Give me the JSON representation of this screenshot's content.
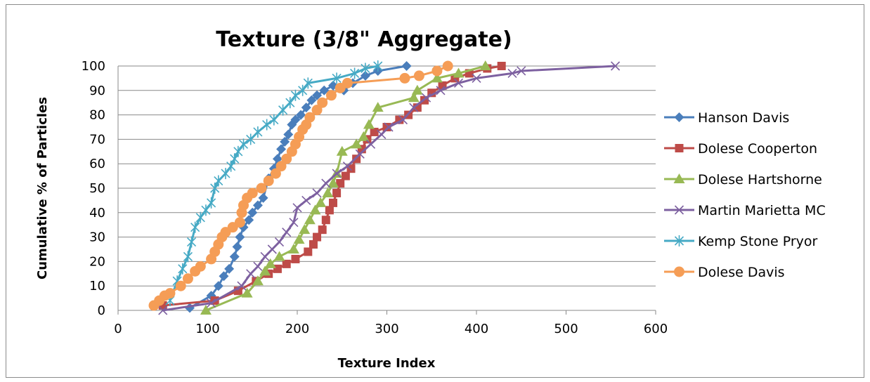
{
  "chart_data": {
    "type": "scatter",
    "title": "Texture (3/8\" Aggregate)",
    "xlabel": "Texture Index",
    "ylabel": "Cumulative % of Particles",
    "xlim": [
      0,
      600
    ],
    "ylim": [
      0,
      100
    ],
    "xticks": [
      "0",
      "100",
      "200",
      "300",
      "400",
      "500",
      "600"
    ],
    "yticks": [
      "0",
      "10",
      "20",
      "30",
      "40",
      "50",
      "60",
      "70",
      "80",
      "90",
      "100"
    ],
    "grid": "horizontal",
    "legend_position": "right",
    "series": [
      {
        "name": "Hanson Davis",
        "color": "#4a7ebb",
        "marker": "diamond",
        "points": [
          [
            80,
            1
          ],
          [
            104,
            6
          ],
          [
            112,
            10
          ],
          [
            118,
            14
          ],
          [
            124,
            17
          ],
          [
            130,
            22
          ],
          [
            133,
            26
          ],
          [
            136,
            30
          ],
          [
            140,
            34
          ],
          [
            146,
            37
          ],
          [
            150,
            40
          ],
          [
            156,
            43
          ],
          [
            162,
            46
          ],
          [
            168,
            54
          ],
          [
            174,
            58
          ],
          [
            178,
            62
          ],
          [
            182,
            66
          ],
          [
            186,
            69
          ],
          [
            190,
            72
          ],
          [
            194,
            76
          ],
          [
            198,
            78
          ],
          [
            204,
            80
          ],
          [
            210,
            83
          ],
          [
            216,
            86
          ],
          [
            222,
            88
          ],
          [
            230,
            90
          ],
          [
            240,
            92
          ],
          [
            252,
            90
          ],
          [
            262,
            93
          ],
          [
            276,
            96
          ],
          [
            290,
            98
          ],
          [
            322,
            100
          ]
        ]
      },
      {
        "name": "Dolese Cooperton",
        "color": "#be4b48",
        "marker": "square",
        "points": [
          [
            50,
            2
          ],
          [
            108,
            4
          ],
          [
            134,
            8
          ],
          [
            154,
            12
          ],
          [
            168,
            15
          ],
          [
            178,
            17
          ],
          [
            188,
            19
          ],
          [
            198,
            21
          ],
          [
            212,
            24
          ],
          [
            218,
            27
          ],
          [
            222,
            30
          ],
          [
            228,
            33
          ],
          [
            232,
            37
          ],
          [
            236,
            41
          ],
          [
            240,
            44
          ],
          [
            244,
            48
          ],
          [
            248,
            52
          ],
          [
            254,
            55
          ],
          [
            260,
            58
          ],
          [
            266,
            62
          ],
          [
            272,
            66
          ],
          [
            278,
            70
          ],
          [
            286,
            73
          ],
          [
            300,
            75
          ],
          [
            314,
            78
          ],
          [
            324,
            80
          ],
          [
            334,
            83
          ],
          [
            342,
            86
          ],
          [
            350,
            89
          ],
          [
            362,
            92
          ],
          [
            376,
            95
          ],
          [
            392,
            97
          ],
          [
            412,
            99
          ],
          [
            428,
            100
          ]
        ]
      },
      {
        "name": "Dolese Hartshorne",
        "color": "#98b954",
        "marker": "triangle",
        "points": [
          [
            98,
            0
          ],
          [
            144,
            7
          ],
          [
            156,
            12
          ],
          [
            164,
            16
          ],
          [
            170,
            19
          ],
          [
            180,
            22
          ],
          [
            196,
            25
          ],
          [
            202,
            29
          ],
          [
            208,
            33
          ],
          [
            214,
            37
          ],
          [
            220,
            41
          ],
          [
            226,
            44
          ],
          [
            234,
            48
          ],
          [
            240,
            52
          ],
          [
            244,
            56
          ],
          [
            250,
            65
          ],
          [
            266,
            68
          ],
          [
            274,
            71
          ],
          [
            280,
            76
          ],
          [
            290,
            83
          ],
          [
            330,
            87
          ],
          [
            334,
            90
          ],
          [
            356,
            95
          ],
          [
            380,
            97
          ],
          [
            410,
            100
          ]
        ]
      },
      {
        "name": "Martin Marietta MC",
        "color": "#7d60a0",
        "marker": "x",
        "points": [
          [
            50,
            0
          ],
          [
            104,
            3
          ],
          [
            138,
            10
          ],
          [
            148,
            15
          ],
          [
            156,
            18
          ],
          [
            164,
            22
          ],
          [
            172,
            25
          ],
          [
            180,
            28
          ],
          [
            188,
            32
          ],
          [
            196,
            36
          ],
          [
            200,
            42
          ],
          [
            210,
            45
          ],
          [
            222,
            48
          ],
          [
            232,
            52
          ],
          [
            244,
            56
          ],
          [
            256,
            59
          ],
          [
            270,
            64
          ],
          [
            282,
            68
          ],
          [
            294,
            72
          ],
          [
            302,
            75
          ],
          [
            318,
            78
          ],
          [
            330,
            83
          ],
          [
            344,
            87
          ],
          [
            360,
            90
          ],
          [
            380,
            93
          ],
          [
            400,
            95
          ],
          [
            440,
            97
          ],
          [
            450,
            98
          ],
          [
            555,
            100
          ]
        ]
      },
      {
        "name": "Kemp Stone Pryor",
        "color": "#46aac5",
        "marker": "star",
        "points": [
          [
            58,
            4
          ],
          [
            66,
            12
          ],
          [
            72,
            17
          ],
          [
            78,
            22
          ],
          [
            82,
            28
          ],
          [
            86,
            34
          ],
          [
            92,
            38
          ],
          [
            98,
            41
          ],
          [
            104,
            44
          ],
          [
            108,
            50
          ],
          [
            112,
            53
          ],
          [
            120,
            56
          ],
          [
            126,
            59
          ],
          [
            130,
            62
          ],
          [
            134,
            65
          ],
          [
            140,
            68
          ],
          [
            148,
            70
          ],
          [
            156,
            73
          ],
          [
            166,
            76
          ],
          [
            174,
            78
          ],
          [
            184,
            82
          ],
          [
            192,
            85
          ],
          [
            198,
            88
          ],
          [
            206,
            90
          ],
          [
            212,
            93
          ],
          [
            244,
            95
          ],
          [
            264,
            97
          ],
          [
            276,
            99
          ],
          [
            290,
            100
          ]
        ]
      },
      {
        "name": "Dolese Davis",
        "color": "#f59d56",
        "marker": "circle",
        "points": [
          [
            40,
            2
          ],
          [
            46,
            4
          ],
          [
            52,
            6
          ],
          [
            58,
            7
          ],
          [
            70,
            10
          ],
          [
            78,
            13
          ],
          [
            86,
            16
          ],
          [
            92,
            18
          ],
          [
            104,
            21
          ],
          [
            108,
            24
          ],
          [
            112,
            27
          ],
          [
            116,
            30
          ],
          [
            120,
            32
          ],
          [
            128,
            34
          ],
          [
            136,
            36
          ],
          [
            138,
            40
          ],
          [
            140,
            43
          ],
          [
            144,
            46
          ],
          [
            150,
            48
          ],
          [
            160,
            50
          ],
          [
            168,
            53
          ],
          [
            176,
            56
          ],
          [
            182,
            59
          ],
          [
            188,
            62
          ],
          [
            194,
            65
          ],
          [
            198,
            68
          ],
          [
            202,
            71
          ],
          [
            206,
            74
          ],
          [
            210,
            76
          ],
          [
            214,
            79
          ],
          [
            222,
            82
          ],
          [
            228,
            85
          ],
          [
            238,
            88
          ],
          [
            248,
            91
          ],
          [
            256,
            93
          ],
          [
            320,
            95
          ],
          [
            336,
            96
          ],
          [
            356,
            98
          ],
          [
            368,
            100
          ]
        ]
      }
    ]
  }
}
